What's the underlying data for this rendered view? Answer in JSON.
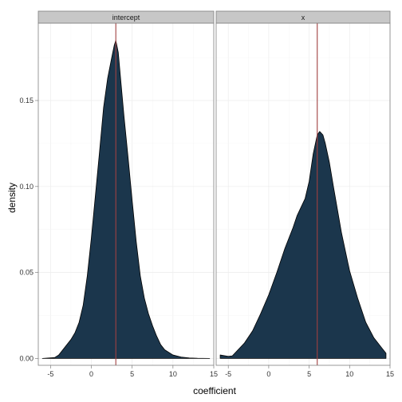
{
  "chart_data": {
    "type": "area",
    "subtype": "faceted-density",
    "xlabel": "coefficient",
    "ylabel": "density",
    "xlim": [
      -6.5,
      15
    ],
    "ylim": [
      -0.004,
      0.195
    ],
    "x_ticks": [
      -5,
      0,
      5,
      10,
      15
    ],
    "x_tick_labels": [
      "-5",
      "0",
      "5",
      "10",
      "15"
    ],
    "y_ticks": [
      0.0,
      0.05,
      0.1,
      0.15
    ],
    "y_tick_labels": [
      "0.00",
      "0.05",
      "0.10",
      "0.15"
    ],
    "grid": true,
    "fill_color": "#1b364c",
    "line_color": "#000000",
    "vline_color": "#a04040",
    "panel_border_color": "#7f7f7f",
    "strip_color": "#c7c7c7",
    "grid_color": "#ececec",
    "facets": [
      {
        "label": "intercept",
        "vline": 3.0,
        "x": [
          -6.0,
          -4.5,
          -4.0,
          -3.5,
          -3.0,
          -2.5,
          -2.0,
          -1.5,
          -1.0,
          -0.5,
          0.0,
          0.5,
          1.0,
          1.5,
          2.0,
          2.5,
          2.8,
          3.0,
          3.3,
          3.6,
          4.0,
          4.5,
          5.0,
          5.5,
          6.0,
          6.5,
          7.0,
          7.5,
          8.0,
          8.5,
          9.0,
          10.0,
          11.0,
          12.0,
          13.0,
          14.5
        ],
        "y": [
          0.0,
          0.0005,
          0.002,
          0.005,
          0.008,
          0.011,
          0.015,
          0.021,
          0.031,
          0.048,
          0.07,
          0.095,
          0.12,
          0.146,
          0.163,
          0.175,
          0.182,
          0.185,
          0.178,
          0.162,
          0.141,
          0.117,
          0.092,
          0.068,
          0.048,
          0.035,
          0.026,
          0.019,
          0.013,
          0.008,
          0.005,
          0.002,
          0.0008,
          0.0003,
          0.0001,
          0.0
        ]
      },
      {
        "label": "x",
        "vline": 6.0,
        "x": [
          -6.0,
          -5.0,
          -4.5,
          -4.0,
          -3.0,
          -2.0,
          -1.0,
          0.0,
          1.0,
          2.0,
          3.0,
          3.5,
          4.0,
          4.5,
          5.0,
          5.5,
          6.0,
          6.3,
          6.7,
          7.0,
          7.5,
          8.0,
          9.0,
          10.0,
          11.0,
          12.0,
          13.0,
          14.0,
          14.5
        ],
        "y": [
          0.002,
          0.0012,
          0.0015,
          0.004,
          0.009,
          0.016,
          0.026,
          0.037,
          0.05,
          0.064,
          0.076,
          0.083,
          0.088,
          0.093,
          0.103,
          0.119,
          0.13,
          0.132,
          0.13,
          0.125,
          0.114,
          0.1,
          0.073,
          0.051,
          0.035,
          0.021,
          0.012,
          0.006,
          0.003
        ]
      }
    ]
  }
}
